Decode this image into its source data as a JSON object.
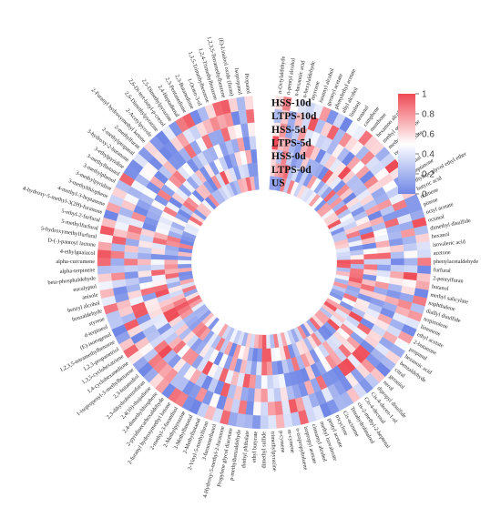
{
  "chart_data": {
    "type": "heatmap",
    "layout": "circular",
    "title": "",
    "rows": [
      "HSS-10d",
      "LTPS-10d",
      "HSS-5d",
      "LTPS-5d",
      "HSS-0d",
      "LTPS-0d",
      "US"
    ],
    "colorbar": {
      "min": 0,
      "max": 1,
      "ticks": [
        "1",
        "0.8",
        "0.6",
        "0.4",
        "0.2",
        "0"
      ],
      "low_color": "#6f86e6",
      "mid_color": "#ffffff",
      "high_color": "#ef4a55"
    },
    "compounds": [
      "n-Octylaldehyde",
      "n-pentyl alcohol",
      "n-hexanoic acid",
      "n-hexylaldehyde",
      "myrcene",
      "isoamyl alcohol",
      "geranyl acetate",
      "phenylethyl acetate",
      "allyl alcohol",
      "linalool",
      "nonanal",
      "camphene",
      "menthone",
      "hexamon alcohol",
      "methyl octyl ketone",
      "methyl heptenone",
      "isobutyl acetate",
      "styrene",
      "heptanal",
      "2-heptanone",
      "ethylene glycol ethyl ether",
      "butyric acid",
      "ocimene",
      "pinene",
      "octyl acetate",
      "octanal",
      "dimethyl disulfide",
      "hexanol",
      "isovaleric acid",
      "acetone",
      "phenylacetaldehyde",
      "furfural",
      "2-pentylfuran",
      "butanol",
      "methyl salicylate",
      "naphthalene",
      "diallyl disulfide",
      "terpinolene",
      "limonene",
      "ethyl acetate",
      "2-butanone",
      "propanal",
      "hexanoic acid",
      "benzaldehyde",
      "citral",
      "geraniol",
      "nerol",
      "dipropyl disulfide",
      "Cis-4-decen-1-ol",
      "Cis-4-decenal",
      "cis-2-methyl-2-heptenal",
      "Tetrahydrolinalool",
      "Cis-ocimene",
      "tricyclene",
      "pentyl acetate",
      "methyl isovalerate",
      "cinnamyl alcohol",
      "isopropyl acetate",
      "o-isopropyltoluene",
      "m-cymene",
      "p-cymene",
      "trimethylpyrazine",
      "dimethyl sulfide",
      "ethyl butyrate",
      "diethyl phthalate",
      "p-methylbenzaldehyde",
      "Propylene glycol diacetate",
      "4-Hydroxy-5-methyl-2-furanone",
      "3-furanmethanol",
      "2-Vinyl-5-methylfuran",
      "2-Methylbutanal",
      "3-Methylbutanal",
      "2-Methylpyrazine",
      "2-methyl-3-furanthiol",
      "2-furanyl hydroxymethyl ketone",
      "2-pyridinecarboxaldehyde",
      "2,4-dimethylthiophene",
      "2,4(10)-thujadiene",
      "2,3-dihydrobenzofuran",
      "2,3-butanediol",
      "1-isopropenyl-3-methylbenzene",
      "1,4-cyclohexanedione",
      "1,3,5-cyclohexatriene",
      "1,2,3-propanetriol",
      "1,2,3,5-tetramethylbenzene",
      "(E)-isoeugenol",
      "d-terpineol",
      "styrene",
      "benzaldehyde",
      "benzyl alcohol",
      "anisole",
      "eucalyptol",
      "beta-phosphaldehyde",
      "alpha-terpinene",
      "alpha-curcumene",
      "4-ethylguaiacol",
      "D-(-)-pantoyl lactone",
      "5-hydroxymethylfurfural",
      "5-methylfurfural",
      "5-ethyl-2-furfural",
      "4-hydroxy-5-methyl-3(2H)-furanone",
      "4-methyl-3-heptanone",
      "3-methylthiophene",
      "3-methylpyridine",
      "3-methylphenol",
      "3-methylbutanol",
      "3-ethylpyridine",
      "3-hydroxy-2-butanone",
      "2-methylpropanal",
      "2-methylfuran",
      "2-Furanyl hydroxymethyl ketone",
      "2-Acetylpyrrole",
      "2,6-Dimethylpyrazine",
      "2,6-Di-tert-butyl-p-cresol",
      "2,5-Dimethylpyrazine",
      "2,4-Heptadienal",
      "2,3-Pentanedione",
      "2,3-Butanedione",
      "1-Octen-3-ol",
      "1,3,5-Trimethylbenzene",
      "1,2,4-Trimethylbenzene",
      "1,2,3,5-Tetramethylbenzene",
      "(E)-Linalool oxide (furan)",
      "Isopropanol",
      "Propanol"
    ]
  }
}
